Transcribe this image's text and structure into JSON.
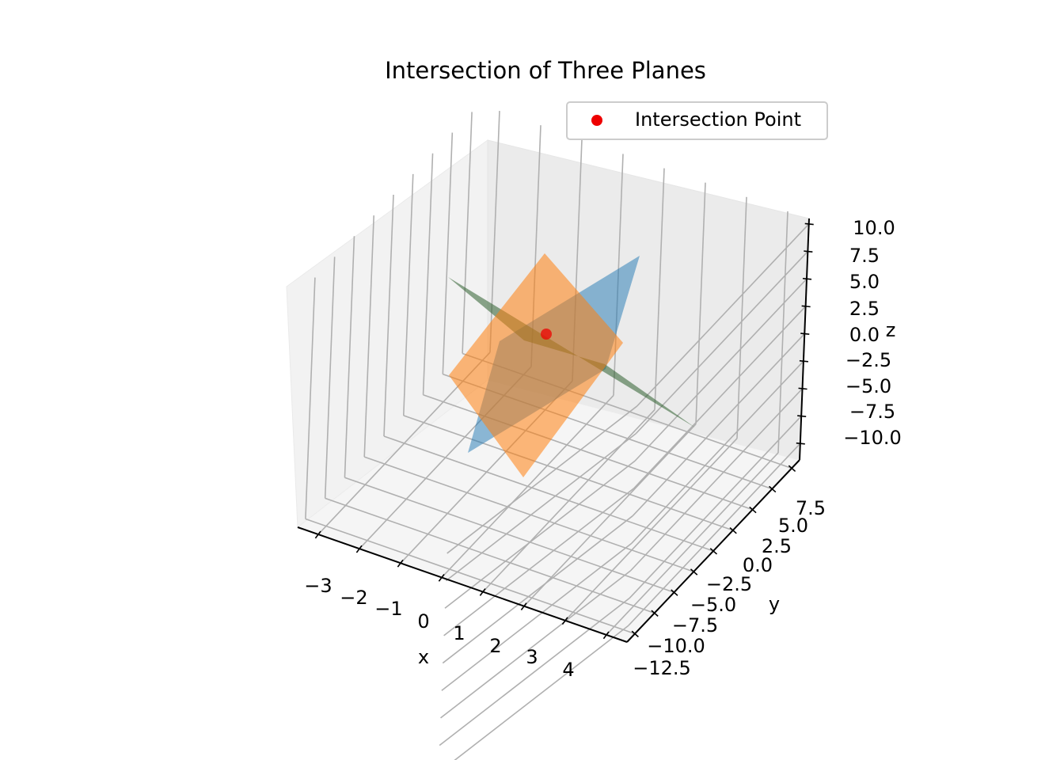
{
  "chart_data": {
    "type": "surface3d",
    "title": "Intersection of Three Planes",
    "axes": {
      "x": {
        "label": "x",
        "ticks": [
          "−3",
          "−2",
          "−1",
          "0",
          "1",
          "2",
          "3",
          "4"
        ],
        "range": [
          -3.5,
          4.5
        ]
      },
      "y": {
        "label": "y",
        "ticks": [
          "−12.5",
          "−10.0",
          "−7.5",
          "−5.0",
          "−2.5",
          "0.0",
          "2.5",
          "5.0",
          "7.5"
        ],
        "range": [
          -13.5,
          8.5
        ]
      },
      "z": {
        "label": "z",
        "ticks": [
          "−10.0",
          "−7.5",
          "−5.0",
          "−2.5",
          "0.0",
          "2.5",
          "5.0",
          "7.5",
          "10.0"
        ],
        "range": [
          -11.5,
          10.5
        ]
      }
    },
    "grid": true,
    "legend": {
      "position": "top-right",
      "entries": [
        {
          "label": "Intersection Point",
          "color": "#ee0000"
        }
      ]
    },
    "planes": [
      {
        "color": "#1f77b4",
        "alpha": 0.5
      },
      {
        "color": "#ff7f0e",
        "alpha": 0.55
      },
      {
        "color": "#2e5e2e",
        "alpha": 0.55
      }
    ],
    "intersection_point": {
      "color": "#ee0000"
    }
  }
}
